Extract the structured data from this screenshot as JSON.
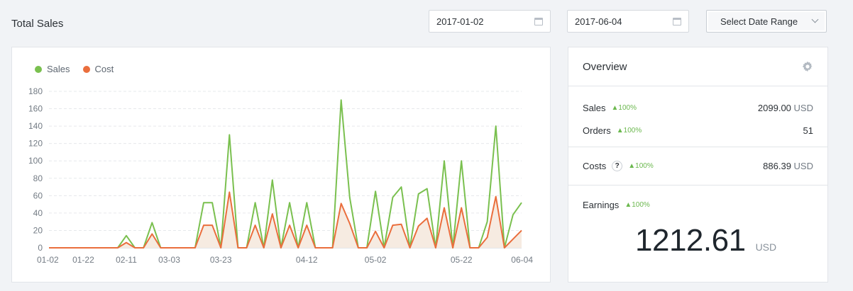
{
  "header": {
    "title": "Total Sales",
    "start_date": "2017-01-02",
    "end_date": "2017-06-04",
    "range_select": "Select Date Range"
  },
  "chart_data": {
    "type": "line",
    "x": [
      "01-02",
      "01-07",
      "01-12",
      "01-17",
      "01-22",
      "01-27",
      "02-01",
      "02-06",
      "02-09",
      "02-11",
      "02-14",
      "02-19",
      "02-24",
      "03-01",
      "03-03",
      "03-06",
      "03-11",
      "03-16",
      "03-19",
      "03-21",
      "03-23",
      "03-25",
      "03-27",
      "03-29",
      "04-01",
      "04-03",
      "04-05",
      "04-07",
      "04-09",
      "04-11",
      "04-12",
      "04-14",
      "04-17",
      "04-20",
      "04-23",
      "04-26",
      "04-28",
      "04-30",
      "05-02",
      "05-04",
      "05-06",
      "05-08",
      "05-10",
      "05-12",
      "05-14",
      "05-16",
      "05-18",
      "05-20",
      "05-22",
      "05-24",
      "05-26",
      "05-28",
      "05-30",
      "06-01",
      "06-02",
      "06-04"
    ],
    "x_ticks": [
      "01-02",
      "01-22",
      "02-11",
      "03-03",
      "03-23",
      "04-12",
      "05-02",
      "05-22",
      "06-04"
    ],
    "series": [
      {
        "name": "Sales",
        "color": "#7ac04f",
        "values": [
          0,
          0,
          0,
          0,
          0,
          0,
          0,
          0,
          0,
          14,
          0,
          0,
          29,
          0,
          0,
          0,
          0,
          0,
          52,
          52,
          0,
          130,
          0,
          0,
          52,
          0,
          78,
          0,
          52,
          0,
          52,
          0,
          0,
          0,
          170,
          58,
          0,
          0,
          65,
          0,
          58,
          70,
          0,
          62,
          68,
          0,
          100,
          0,
          100,
          0,
          0,
          30,
          140,
          0,
          38,
          52
        ]
      },
      {
        "name": "Cost",
        "color": "#ea6e3d",
        "values": [
          0,
          0,
          0,
          0,
          0,
          0,
          0,
          0,
          0,
          6,
          0,
          0,
          16,
          0,
          0,
          0,
          0,
          0,
          26,
          26,
          0,
          64,
          0,
          0,
          26,
          0,
          39,
          0,
          26,
          0,
          26,
          0,
          0,
          0,
          51,
          28,
          0,
          0,
          19,
          0,
          26,
          27,
          0,
          25,
          34,
          0,
          46,
          0,
          46,
          0,
          0,
          12,
          59,
          0,
          10,
          20
        ]
      }
    ],
    "ylim": [
      0,
      180
    ],
    "y_ticks": [
      0,
      20,
      40,
      60,
      80,
      100,
      120,
      140,
      160,
      180
    ],
    "grid": true,
    "legend": "top-left"
  },
  "overview": {
    "title": "Overview",
    "sales_label": "Sales",
    "sales_pct": "▲100%",
    "sales_value": "2099.00",
    "sales_unit": "USD",
    "orders_label": "Orders",
    "orders_pct": "▲100%",
    "orders_value": "51",
    "costs_label": "Costs",
    "costs_help": "?",
    "costs_pct": "▲100%",
    "costs_value": "886.39",
    "costs_unit": "USD",
    "earnings_label": "Earnings",
    "earnings_pct": "▲100%",
    "earnings_value": "1212.61",
    "earnings_unit": "USD"
  }
}
